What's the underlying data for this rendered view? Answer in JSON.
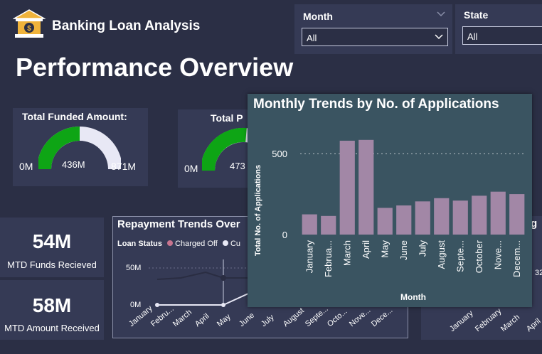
{
  "app_title": "Banking Loan Analysis",
  "page_title": "Performance Overview",
  "filters": {
    "month": {
      "label": "Month",
      "value": "All"
    },
    "state": {
      "label": "State",
      "value": "All"
    }
  },
  "kpi_funded": {
    "title": "Total Funded Amount:",
    "min": "0M",
    "value": "436M",
    "max": "871M",
    "fill_fraction": 0.5
  },
  "kpi_second": {
    "title": "Total P",
    "min": "0M",
    "value": "473"
  },
  "mtd_funds": {
    "value": "54M",
    "caption": "MTD Funds Recieved"
  },
  "mtd_amount": {
    "value": "58M",
    "caption": "MTD Amount Received"
  },
  "repayment": {
    "title": "Repayment Trends Over",
    "legend_title": "Loan Status",
    "legend_items": [
      "Charged Off",
      "Cu"
    ],
    "y_ticks": [
      "50M",
      "0M"
    ],
    "x_labels": [
      "January",
      "Febru...",
      "March",
      "April",
      "May",
      "June",
      "July",
      "August",
      "Septe...",
      "Octo...",
      "Nove...",
      "Dece..."
    ]
  },
  "right_partial": {
    "title_fragment": "g",
    "value_fragment": "32",
    "x_labels": [
      "January",
      "February",
      "March",
      "April"
    ]
  },
  "colors": {
    "bg": "#2b2f45",
    "card": "#353a55",
    "popup": "#3a5461",
    "bar": "#a287a6",
    "gauge_fill": "#0ea515",
    "gauge_empty": "#e8e8f5",
    "charged_off": "#c7748f"
  },
  "chart_data": {
    "type": "bar",
    "title": "Monthly Trends by No. of Applications",
    "xlabel": "Month",
    "ylabel": "Total No. of Applications",
    "categories": [
      "January",
      "Februa...",
      "March",
      "April",
      "May",
      "June",
      "July",
      "August",
      "Septe...",
      "October",
      "Nove...",
      "Decem..."
    ],
    "values": [
      125,
      115,
      580,
      585,
      165,
      180,
      205,
      225,
      210,
      240,
      265,
      250
    ],
    "y_ticks": [
      0,
      500
    ],
    "ylim": [
      0,
      650
    ],
    "grid": true
  }
}
